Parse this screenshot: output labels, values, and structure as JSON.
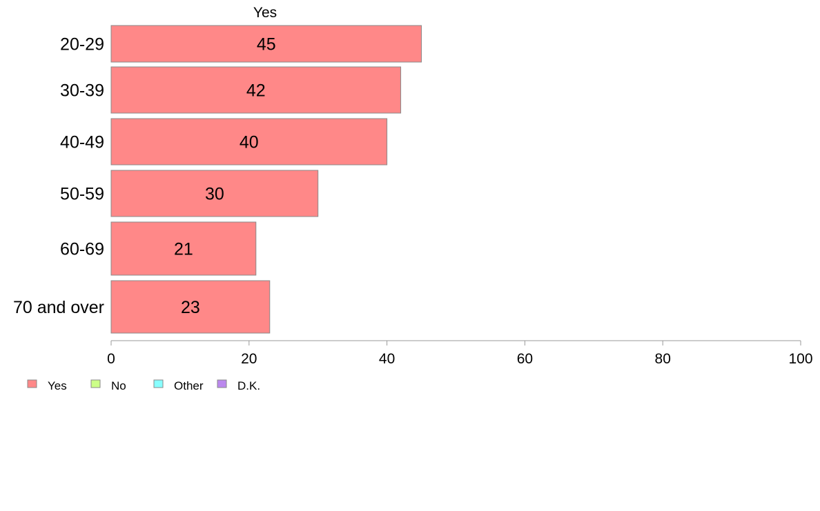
{
  "chart_data": {
    "type": "bar",
    "orientation": "horizontal",
    "column_header": "Yes",
    "categories": [
      "20-29",
      "30-39",
      "40-49",
      "50-59",
      "60-69",
      "70 and over"
    ],
    "series": [
      {
        "name": "Yes",
        "values": [
          45,
          42,
          40,
          30,
          21,
          23
        ]
      }
    ],
    "bar_color": "#ff8888",
    "bar_border_color": "#888888",
    "axis_color": "#999999",
    "xlim": [
      0,
      100
    ],
    "x_ticks": [
      0,
      20,
      40,
      60,
      80,
      100
    ],
    "grid": false,
    "legend": {
      "position": "bottom-left",
      "items": [
        {
          "label": "Yes",
          "color": "#ff8888"
        },
        {
          "label": "No",
          "color": "#ccff88"
        },
        {
          "label": "Other",
          "color": "#88ffff"
        },
        {
          "label": "D.K.",
          "color": "#bb88ee"
        }
      ]
    }
  }
}
